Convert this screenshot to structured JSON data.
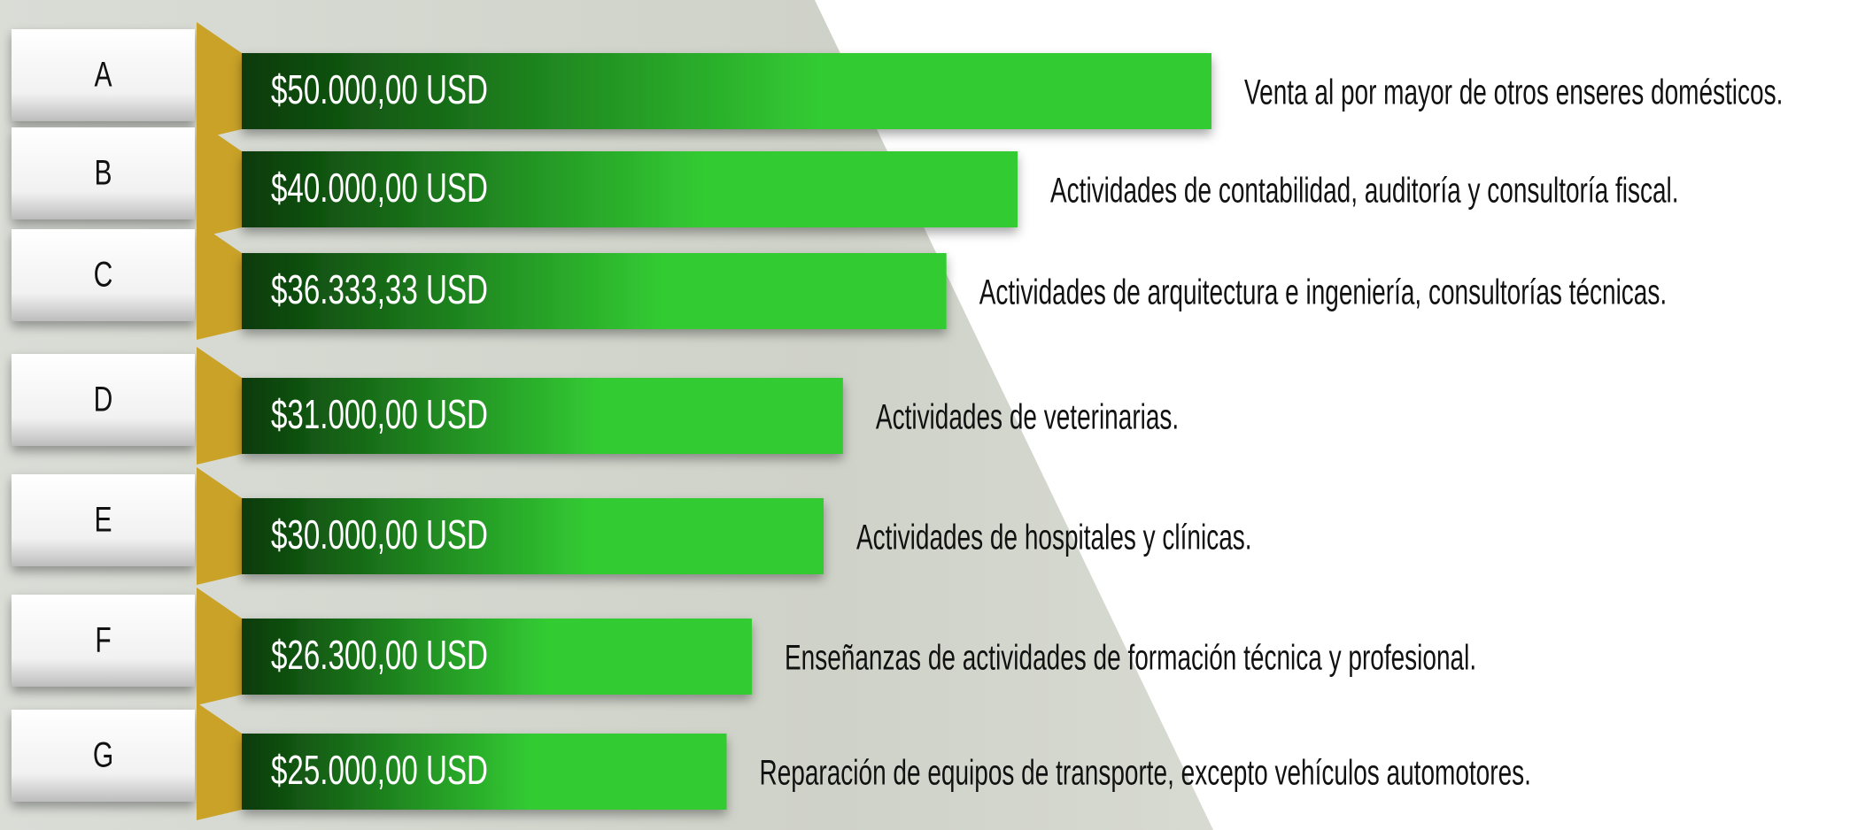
{
  "chart_data": {
    "type": "bar",
    "orientation": "horizontal",
    "categories": [
      "A",
      "B",
      "C",
      "D",
      "E",
      "F",
      "G"
    ],
    "values": [
      50000,
      40000,
      36333.33,
      31000,
      30000,
      26300,
      25000
    ],
    "value_labels": [
      "$50.000,00 USD",
      "$40.000,00 USD",
      "$36.333,33 USD",
      "$31.000,00 USD",
      "$30.000,00 USD",
      "$26.300,00 USD",
      "$25.000,00 USD"
    ],
    "descriptions": [
      "Venta al por mayor de otros enseres domésticos.",
      "Actividades de contabilidad, auditoría y consultoría fiscal.",
      "Actividades de arquitectura e ingeniería, consultorías técnicas.",
      "Actividades de veterinarias.",
      "Actividades de hospitales y clínicas.",
      "Enseñanzas de actividades de formación técnica y profesional.",
      "Reparación de equipos de transporte, excepto vehículos automotores."
    ],
    "colors": [
      "#0a3a0a",
      "#33cc33"
    ],
    "accent_color": "#c9a227"
  }
}
